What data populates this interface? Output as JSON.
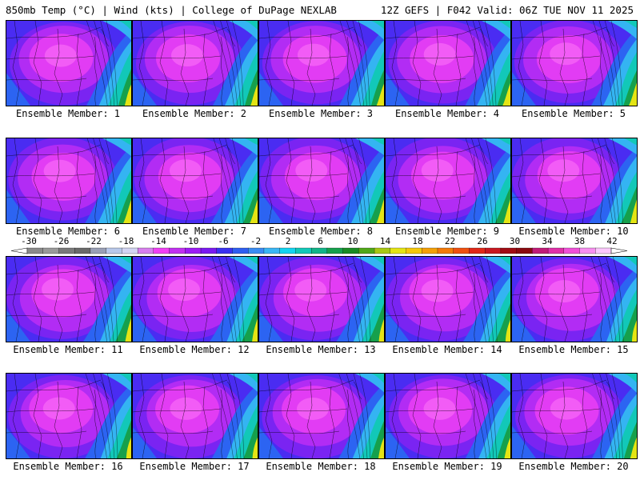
{
  "header": {
    "left": "850mb Temp (°C) | Wind (kts) | College of DuPage NEXLAB",
    "right": "12Z GEFS | F042 Valid: 06Z TUE NOV 11 2025"
  },
  "colorbar": {
    "labels": [
      "-30",
      "-26",
      "-22",
      "-18",
      "-14",
      "-10",
      "-6",
      "-2",
      "2",
      "6",
      "10",
      "14",
      "18",
      "22",
      "26",
      "30",
      "34",
      "38",
      "42"
    ],
    "colors": [
      "#8a8a8a",
      "#999999",
      "#7a7a7a",
      "#6a6a6a",
      "#999fb5",
      "#b8c8ea",
      "#d2d4f2",
      "#d880ee",
      "#f040f4",
      "#c030f0",
      "#9c1cf4",
      "#7a1af0",
      "#3a32f0",
      "#2e5ef0",
      "#3a8cf2",
      "#3ab6f4",
      "#14d4f0",
      "#12c8b8",
      "#12b488",
      "#16a04c",
      "#1a8c24",
      "#50a818",
      "#a8c814",
      "#e4e414",
      "#f4c80a",
      "#f4a008",
      "#f47a08",
      "#f05010",
      "#e02818",
      "#c81820",
      "#a00c14",
      "#8a0a10",
      "#c01c78",
      "#e030a8",
      "#f050d8",
      "#f890f0",
      "#fcc8fc"
    ]
  },
  "members": [
    {
      "label": "Ensemble Member: 1"
    },
    {
      "label": "Ensemble Member: 2"
    },
    {
      "label": "Ensemble Member: 3"
    },
    {
      "label": "Ensemble Member: 4"
    },
    {
      "label": "Ensemble Member: 5"
    },
    {
      "label": "Ensemble Member: 6"
    },
    {
      "label": "Ensemble Member: 7"
    },
    {
      "label": "Ensemble Member: 8"
    },
    {
      "label": "Ensemble Member: 9"
    },
    {
      "label": "Ensemble Member: 10"
    },
    {
      "label": "Ensemble Member: 11"
    },
    {
      "label": "Ensemble Member: 12"
    },
    {
      "label": "Ensemble Member: 13"
    },
    {
      "label": "Ensemble Member: 14"
    },
    {
      "label": "Ensemble Member: 15"
    },
    {
      "label": "Ensemble Member: 16"
    },
    {
      "label": "Ensemble Member: 17"
    },
    {
      "label": "Ensemble Member: 18"
    },
    {
      "label": "Ensemble Member: 19"
    },
    {
      "label": "Ensemble Member: 20"
    }
  ]
}
